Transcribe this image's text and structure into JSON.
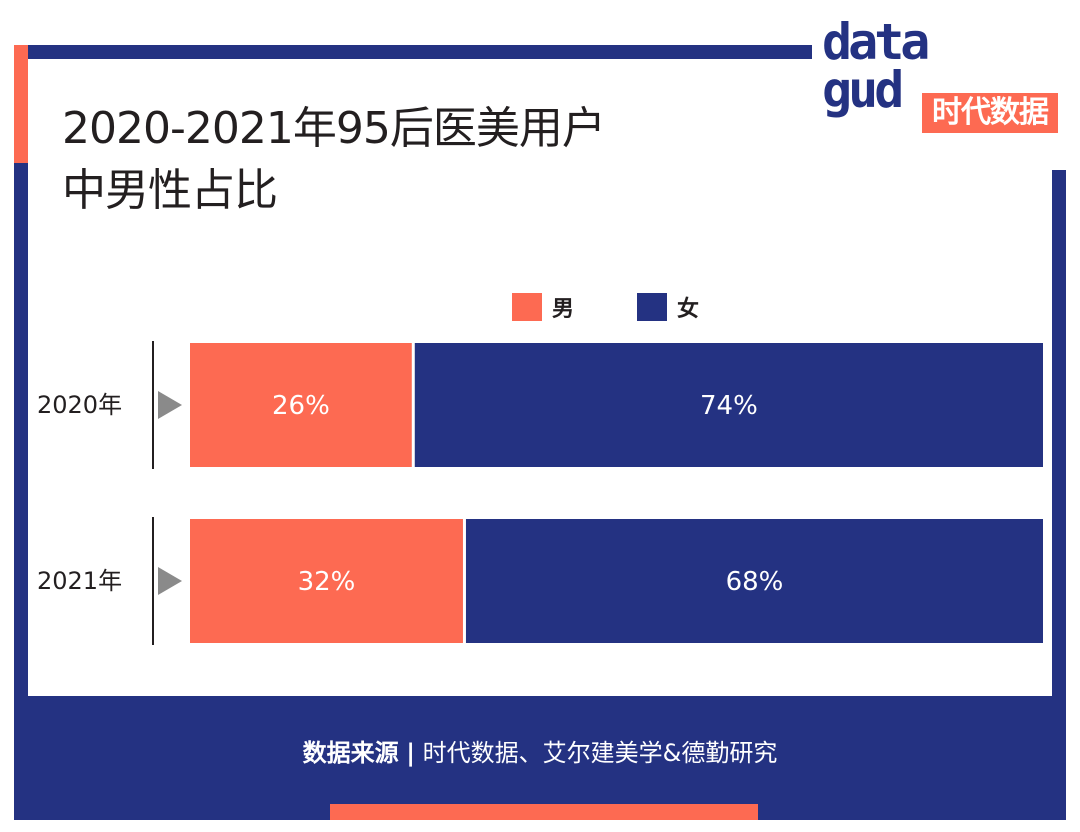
{
  "title_lines": [
    "2020-2021年95后医美用户",
    "中男性占比"
  ],
  "logo": {
    "wordmark_line1": "data",
    "wordmark_line2": "gud",
    "badge": "时代数据"
  },
  "colors": {
    "male": "#fd6a52",
    "female": "#243282",
    "frame": "#243282",
    "accent": "#fd6a52",
    "pointer": "#8a8a8a"
  },
  "chart_data": {
    "type": "bar",
    "stacked": true,
    "orientation": "horizontal",
    "normalized_percent": true,
    "categories": [
      "2020年",
      "2021年"
    ],
    "series": [
      {
        "name": "男",
        "values": [
          26,
          32
        ],
        "labels": [
          "26%",
          "32%"
        ]
      },
      {
        "name": "女",
        "values": [
          74,
          68
        ],
        "labels": [
          "74%",
          "68%"
        ]
      }
    ],
    "xlim": [
      0,
      100
    ],
    "legend_position": "top-center",
    "grid": false
  },
  "source": {
    "label": "数据来源",
    "separator": "|",
    "text": "时代数据、艾尔建美学&德勤研究"
  }
}
